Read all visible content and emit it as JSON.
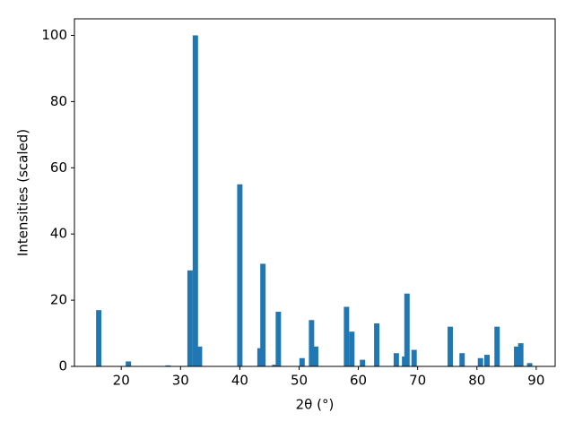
{
  "chart_data": {
    "type": "bar",
    "xlabel": "2θ (°)",
    "ylabel": "Intensities (scaled)",
    "x": [
      16.2,
      21.2,
      27.9,
      31.6,
      32.5,
      33.2,
      40.0,
      43.4,
      43.9,
      45.9,
      46.5,
      50.5,
      52.1,
      52.8,
      58.0,
      58.9,
      60.7,
      63.1,
      66.4,
      67.8,
      68.2,
      69.4,
      75.5,
      77.5,
      80.6,
      81.7,
      83.4,
      86.7,
      87.4,
      88.9
    ],
    "values": [
      17,
      1.5,
      0.3,
      29,
      100,
      6,
      55,
      5.5,
      31,
      0.5,
      16.5,
      2.5,
      14,
      6,
      18,
      10.5,
      2,
      13,
      4,
      3,
      22,
      5,
      12,
      4,
      2.5,
      3.5,
      12,
      6,
      7,
      1
    ],
    "color": "#1f77b4",
    "xlim": [
      12.1,
      93.2
    ],
    "xticks": [
      20,
      30,
      40,
      50,
      60,
      70,
      80,
      90
    ],
    "ylim": [
      0,
      105
    ],
    "yticks": [
      0,
      20,
      40,
      60,
      80,
      100
    ],
    "grid": false
  }
}
